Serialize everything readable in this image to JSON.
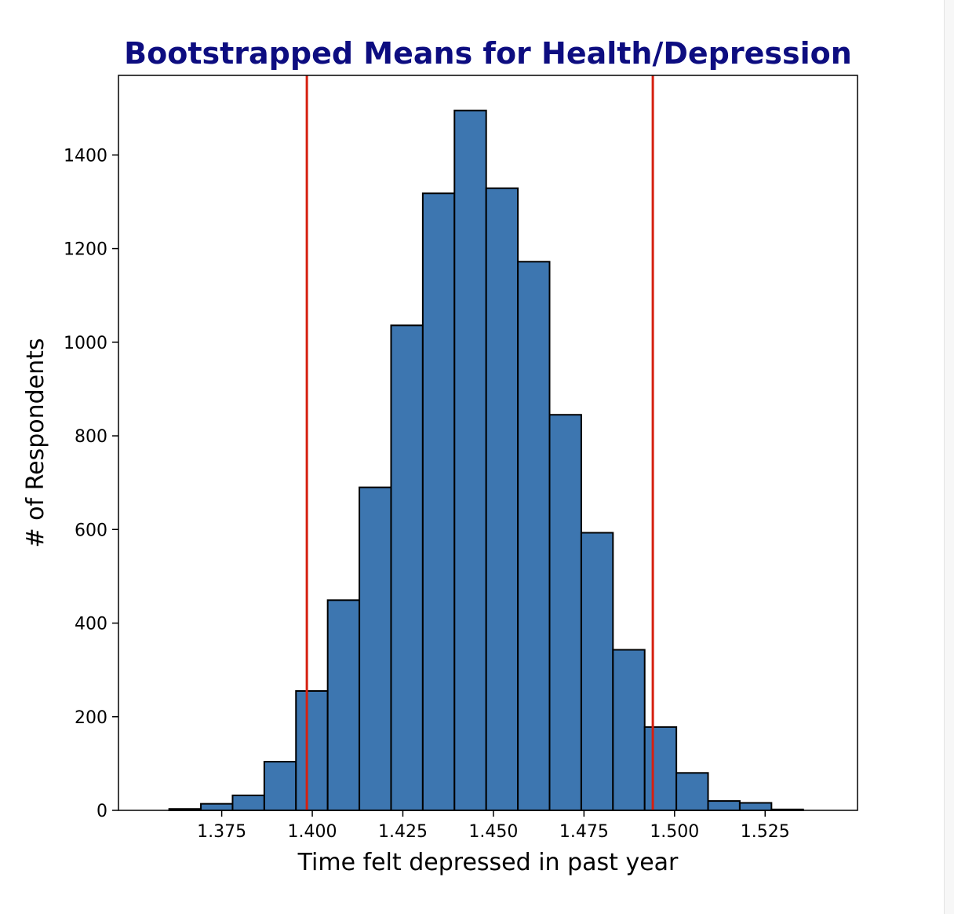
{
  "chart_data": {
    "type": "bar",
    "title": "Bootstrapped Means for Health/Depression",
    "xlabel": "Time felt depressed in past year",
    "ylabel": "# of Respondents",
    "xlim": [
      1.3465,
      1.5505
    ],
    "ylim": [
      0,
      1570
    ],
    "x_ticks": [
      {
        "value": 1.375,
        "label": "1.375"
      },
      {
        "value": 1.4,
        "label": "1.400"
      },
      {
        "value": 1.425,
        "label": "1.425"
      },
      {
        "value": 1.45,
        "label": "1.450"
      },
      {
        "value": 1.475,
        "label": "1.475"
      },
      {
        "value": 1.5,
        "label": "1.500"
      },
      {
        "value": 1.525,
        "label": "1.525"
      }
    ],
    "y_ticks": [
      {
        "value": 0,
        "label": "0"
      },
      {
        "value": 200,
        "label": "200"
      },
      {
        "value": 400,
        "label": "400"
      },
      {
        "value": 600,
        "label": "600"
      },
      {
        "value": 800,
        "label": "800"
      },
      {
        "value": 1000,
        "label": "1000"
      },
      {
        "value": 1200,
        "label": "1200"
      },
      {
        "value": 1400,
        "label": "1400"
      }
    ],
    "bins": {
      "start": 1.3605,
      "width": 0.00875,
      "counts": [
        3,
        14,
        32,
        104,
        255,
        449,
        690,
        1036,
        1318,
        1495,
        1329,
        1172,
        845,
        593,
        343,
        178,
        80,
        20,
        16,
        2
      ]
    },
    "vertical_lines": [
      {
        "x": 1.3985,
        "color": "#d62010"
      },
      {
        "x": 1.494,
        "color": "#d62010"
      }
    ],
    "bar_color": "#3d76b0",
    "edge_color": "#000000",
    "title_color": "#0d0d80",
    "grid": false,
    "legend": "none"
  }
}
